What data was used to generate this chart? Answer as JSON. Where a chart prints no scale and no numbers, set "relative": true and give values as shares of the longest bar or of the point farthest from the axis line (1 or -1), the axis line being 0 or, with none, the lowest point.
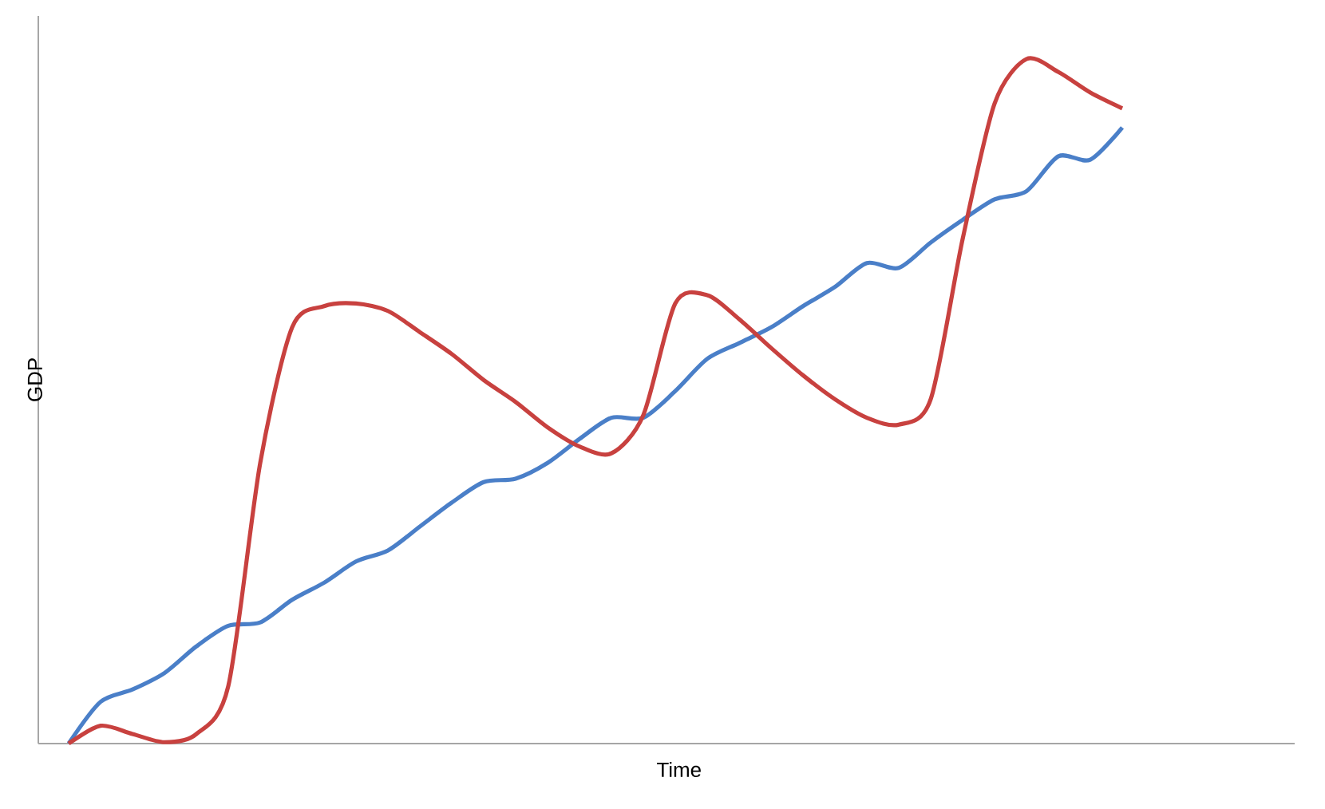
{
  "chart_data": {
    "type": "line",
    "xlabel": "Time",
    "ylabel": "GDP",
    "relative": true,
    "line_style": "solid",
    "categories": [
      null,
      null,
      null,
      null,
      null,
      null,
      null,
      null,
      null,
      null,
      null,
      null,
      null,
      null,
      null,
      null,
      null,
      null,
      null,
      null,
      null,
      null,
      null,
      null,
      null,
      null,
      null,
      null,
      null,
      null,
      null,
      null,
      null,
      null
    ],
    "series": [
      {
        "color": "#4a7fc8",
        "values": [
          0,
          0.061,
          0.079,
          0.103,
          0.142,
          0.172,
          0.177,
          0.21,
          0.235,
          0.266,
          0.282,
          0.317,
          0.352,
          0.382,
          0.387,
          0.41,
          0.445,
          0.476,
          0.476,
          0.515,
          0.562,
          0.585,
          0.608,
          0.639,
          0.667,
          0.702,
          0.695,
          0.732,
          0.765,
          0.795,
          0.807,
          0.858,
          0.853,
          0.9
        ]
      },
      {
        "color": "#c8413f",
        "values": [
          0,
          0.026,
          0.014,
          0.002,
          0.014,
          0.084,
          0.41,
          0.608,
          0.639,
          0.643,
          0.632,
          0.601,
          0.569,
          0.531,
          0.499,
          0.462,
          0.434,
          0.424,
          0.48,
          0.643,
          0.655,
          0.62,
          0.578,
          0.538,
          0.503,
          0.476,
          0.466,
          0.503,
          0.737,
          0.935,
          1,
          0.981,
          0.951,
          0.928
        ]
      }
    ]
  }
}
